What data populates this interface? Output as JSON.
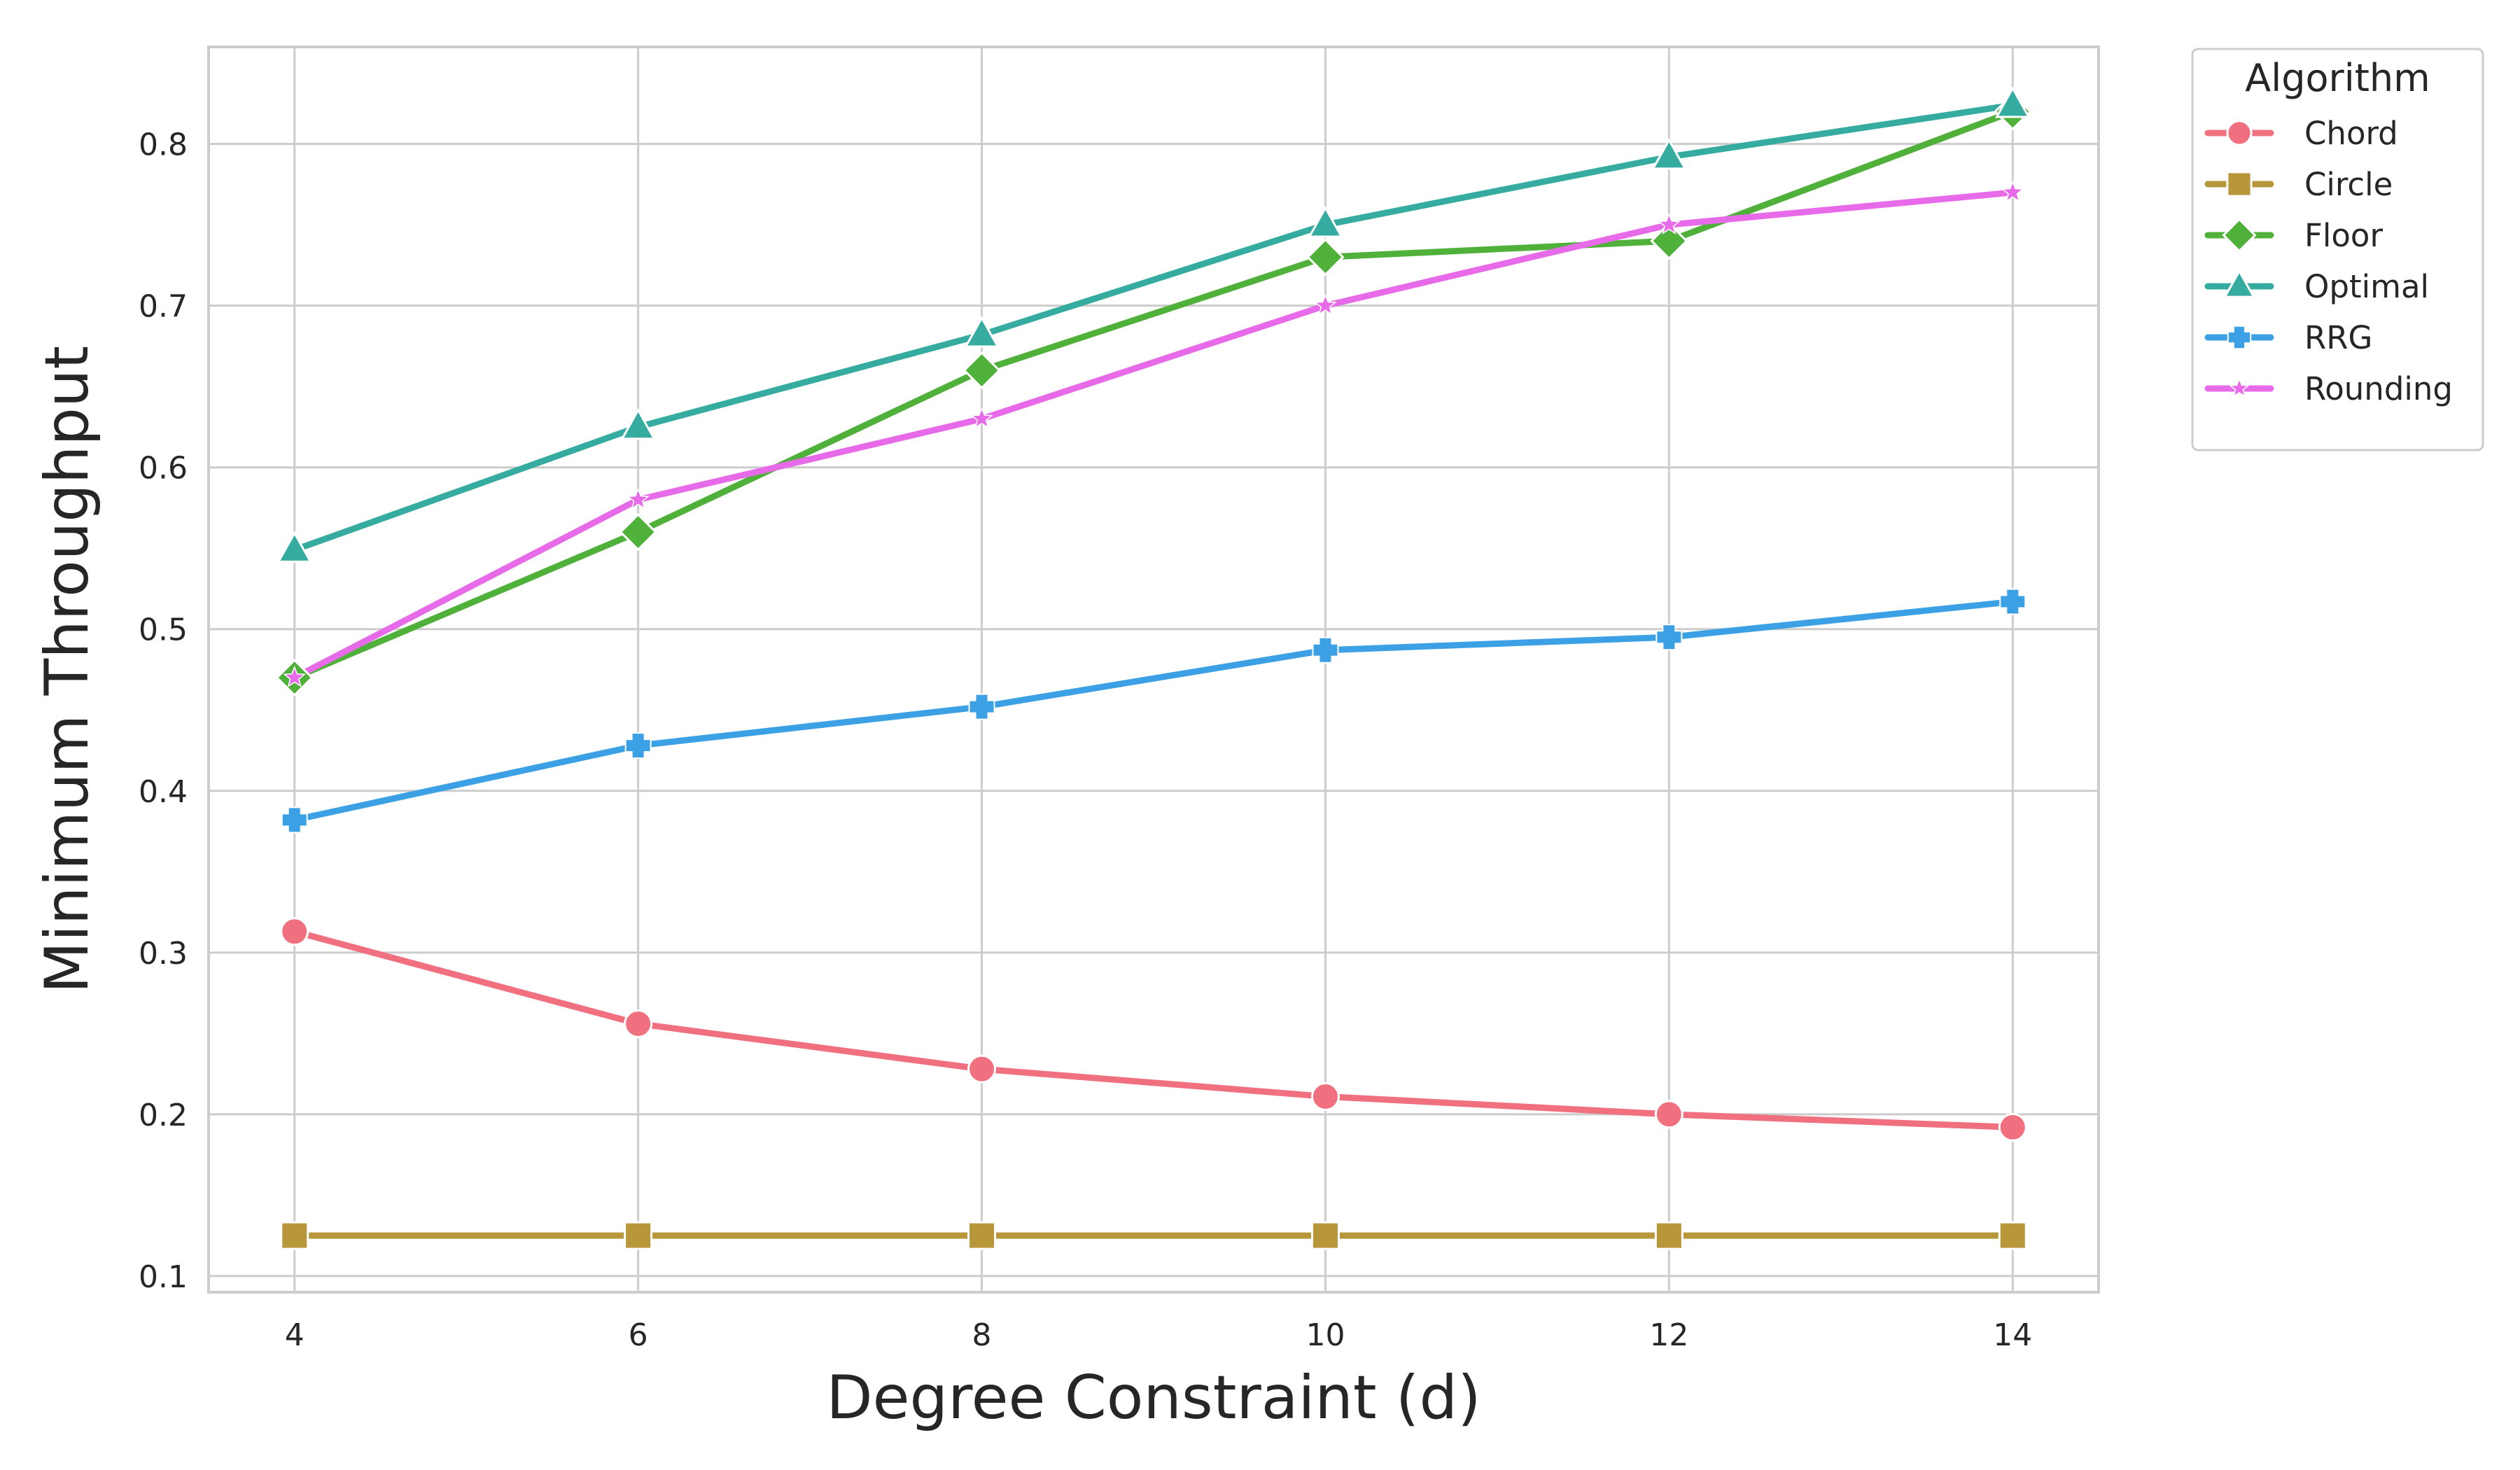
{
  "chart_data": {
    "type": "line",
    "title": "",
    "xlabel": "Degree Constraint (d)",
    "ylabel": "Minimum Throughput",
    "x": [
      4,
      6,
      8,
      10,
      12,
      14
    ],
    "xticks": [
      "4",
      "6",
      "8",
      "10",
      "12",
      "14"
    ],
    "yticks": [
      "0.1",
      "0.2",
      "0.3",
      "0.4",
      "0.5",
      "0.6",
      "0.7",
      "0.8"
    ],
    "xlim": [
      3.5,
      14.5
    ],
    "ylim": [
      0.09,
      0.86
    ],
    "grid": true,
    "legend": {
      "title": "Algorithm",
      "placement": "outside-top-right"
    },
    "series": [
      {
        "name": "Chord",
        "color": "#f0707f",
        "marker": "circle",
        "values": [
          0.313,
          0.256,
          0.228,
          0.211,
          0.2,
          0.192
        ]
      },
      {
        "name": "Circle",
        "color": "#b8963a",
        "marker": "square",
        "values": [
          0.125,
          0.125,
          0.125,
          0.125,
          0.125,
          0.125
        ]
      },
      {
        "name": "Floor",
        "color": "#50b13a",
        "marker": "diamond",
        "values": [
          0.47,
          0.56,
          0.66,
          0.73,
          0.74,
          0.82
        ]
      },
      {
        "name": "Optimal",
        "color": "#36aba0",
        "marker": "triangle",
        "values": [
          0.549,
          0.625,
          0.682,
          0.75,
          0.792,
          0.824
        ]
      },
      {
        "name": "RRG",
        "color": "#3ca1e4",
        "marker": "plus",
        "values": [
          0.382,
          0.428,
          0.452,
          0.487,
          0.495,
          0.517
        ]
      },
      {
        "name": "Rounding",
        "color": "#e76ae9",
        "marker": "star",
        "values": [
          0.47,
          0.58,
          0.63,
          0.7,
          0.75,
          0.77
        ]
      }
    ]
  }
}
